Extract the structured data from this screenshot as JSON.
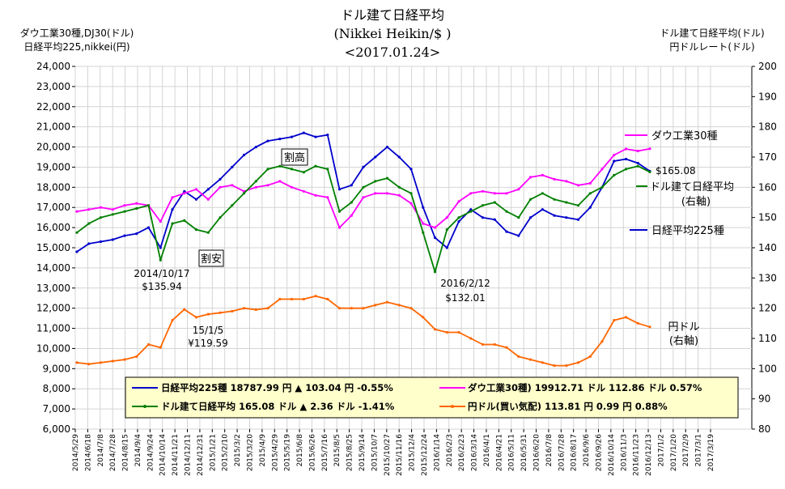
{
  "chart_data": {
    "type": "line",
    "title": "ドル建て日経平均",
    "subtitle": "(Nikkei Heikin/$ )",
    "date": "<2017.01.24>",
    "left_axis_label": [
      "ダウ工業30種,DJ30(ドル)",
      "日経平均225,nikkei(円)"
    ],
    "right_axis_label": [
      "ドル建て日経平均(ドル)",
      "円ドルレート(ドル)"
    ],
    "ylim_left": [
      6000,
      24000
    ],
    "ylim_right": [
      80,
      200
    ],
    "y_ticks_left": [
      "6,000",
      "7,000",
      "8,000",
      "9,000",
      "10,000",
      "11,000",
      "12,000",
      "13,000",
      "14,000",
      "15,000",
      "16,000",
      "17,000",
      "18,000",
      "19,000",
      "20,000",
      "21,000",
      "22,000",
      "23,000",
      "24,000"
    ],
    "y_ticks_right": [
      "80",
      "90",
      "100",
      "110",
      "120",
      "130",
      "140",
      "150",
      "160",
      "170",
      "180",
      "190",
      "200"
    ],
    "x_ticks": [
      "2014/5/29",
      "2014/6/18",
      "2014/7/8",
      "2014/7/28",
      "2014/8/15",
      "2014/9/4",
      "2014/9/24",
      "2014/10/14",
      "2014/11/21",
      "2014/12/11",
      "2014/12/31",
      "2015/1/21",
      "2015/2/10",
      "2015/3/2",
      "2015/3/20",
      "2015/4/9",
      "2015/4/29",
      "2015/5/19",
      "2015/6/8",
      "2015/6/26",
      "2015/7/16",
      "2015/8/5",
      "2015/8/25",
      "2015/9/14",
      "2015/10/7",
      "2015/10/27",
      "2015/11/16",
      "2015/12/4",
      "2015/12/24",
      "2016/1/14",
      "2016/2/3",
      "2016/2/23",
      "2016/3/14",
      "2016/4/1",
      "2016/4/21",
      "2016/5/11",
      "2016/5/31",
      "2016/6/20",
      "2016/7/8",
      "2016/7/28",
      "2016/8/17",
      "2016/9/6",
      "2016/9/26",
      "2016/10/14",
      "2016/11/3",
      "2016/11/23",
      "2016/12/13",
      "2017/1/2",
      "2017/1/20",
      "2017/2/9",
      "2017/3/1",
      "2017/3/19"
    ],
    "grid": true,
    "series": [
      {
        "name": "日経平均225種",
        "axis": "left",
        "color": "#0000cc",
        "x": [
          0,
          1,
          2,
          3,
          4,
          5,
          6,
          7,
          8,
          9,
          10,
          11,
          12,
          13,
          14,
          15,
          16,
          17,
          18,
          19,
          20,
          21,
          22,
          23,
          24,
          25,
          26,
          27,
          28,
          29,
          30,
          31,
          32,
          33,
          34,
          35,
          36,
          37,
          38,
          39,
          40,
          41,
          42,
          43,
          44,
          45,
          46,
          47,
          48
        ],
        "values": [
          14800,
          15200,
          15300,
          15400,
          15600,
          15700,
          16000,
          15000,
          16900,
          17800,
          17400,
          17900,
          18400,
          19000,
          19600,
          20000,
          20300,
          20400,
          20500,
          20700,
          20500,
          20600,
          17900,
          18100,
          19000,
          19500,
          20000,
          19500,
          18900,
          17000,
          15500,
          15000,
          16300,
          16900,
          16500,
          16400,
          15800,
          15600,
          16500,
          16900,
          16600,
          16500,
          16400,
          17000,
          18000,
          19300,
          19400,
          19200,
          18800
        ]
      },
      {
        "name": "ダウ工業30種",
        "axis": "left",
        "color": "#ff00ff",
        "x": [
          0,
          1,
          2,
          3,
          4,
          5,
          6,
          7,
          8,
          9,
          10,
          11,
          12,
          13,
          14,
          15,
          16,
          17,
          18,
          19,
          20,
          21,
          22,
          23,
          24,
          25,
          26,
          27,
          28,
          29,
          30,
          31,
          32,
          33,
          34,
          35,
          36,
          37,
          38,
          39,
          40,
          41,
          42,
          43,
          44,
          45,
          46,
          47,
          48
        ],
        "values": [
          16800,
          16900,
          17000,
          16900,
          17100,
          17200,
          17100,
          16300,
          17500,
          17700,
          17900,
          17400,
          18000,
          18100,
          17800,
          18000,
          18100,
          18300,
          18000,
          17800,
          17600,
          17500,
          16000,
          16600,
          17500,
          17700,
          17700,
          17600,
          17200,
          16200,
          16000,
          16500,
          17300,
          17700,
          17800,
          17700,
          17700,
          17900,
          18500,
          18600,
          18400,
          18300,
          18100,
          18200,
          18900,
          19600,
          19900,
          19800,
          19913
        ]
      },
      {
        "name": "ドル建て日経平均",
        "axis": "right",
        "color": "#008000",
        "x": [
          0,
          1,
          2,
          3,
          4,
          5,
          6,
          7,
          8,
          9,
          10,
          11,
          12,
          13,
          14,
          15,
          16,
          17,
          18,
          19,
          20,
          21,
          22,
          23,
          24,
          25,
          26,
          27,
          28,
          29,
          30,
          31,
          32,
          33,
          34,
          35,
          36,
          37,
          38,
          39,
          40,
          41,
          42,
          43,
          44,
          45,
          46,
          47,
          48
        ],
        "values": [
          145,
          148,
          150,
          151,
          152,
          153,
          154,
          135.94,
          148,
          149,
          146,
          145,
          150,
          154,
          158,
          162,
          166,
          167,
          166,
          165,
          167,
          166,
          152,
          155,
          160,
          162,
          163,
          160,
          158,
          145,
          132.01,
          146,
          150,
          152,
          154,
          155,
          152,
          150,
          156,
          158,
          156,
          155,
          154,
          158,
          160,
          164,
          166,
          167,
          165.08
        ]
      },
      {
        "name": "円ドル(買い気配)",
        "axis": "right",
        "color": "#ff6600",
        "x": [
          0,
          1,
          2,
          3,
          4,
          5,
          6,
          7,
          8,
          9,
          10,
          11,
          12,
          13,
          14,
          15,
          16,
          17,
          18,
          19,
          20,
          21,
          22,
          23,
          24,
          25,
          26,
          27,
          28,
          29,
          30,
          31,
          32,
          33,
          34,
          35,
          36,
          37,
          38,
          39,
          40,
          41,
          42,
          43,
          44,
          45,
          46,
          47,
          48
        ],
        "values": [
          102,
          101.5,
          102,
          102.5,
          103,
          104,
          108,
          107,
          116,
          119.59,
          117,
          118,
          118.5,
          119,
          120,
          119.5,
          120,
          123,
          123,
          123,
          124,
          123,
          120,
          120,
          120,
          121,
          122,
          121,
          120,
          117,
          113,
          112,
          112,
          110,
          108,
          108,
          107,
          104,
          103,
          102,
          101,
          101,
          102,
          104,
          109,
          116,
          117,
          115,
          113.81
        ]
      }
    ],
    "annotations": {
      "low_2014": [
        "2014/10/17",
        "$135.94"
      ],
      "low_2016": [
        "2016/2/12",
        "$132.01"
      ],
      "fx_2015": [
        "15/1/5",
        "¥119.59"
      ],
      "last_value": "$165.08",
      "cheap": "割安",
      "expensive": "割高"
    },
    "labels": {
      "dow": "ダウ工業30種",
      "usd_nikkei": [
        "ドル建て日経平均",
        "(右軸)"
      ],
      "nikkei": "日経平均225種",
      "yen": [
        "円ドル",
        "(右軸)"
      ]
    },
    "legend": {
      "position": "bottom-center",
      "entries": [
        "日経平均225種 18787.99 円 ▲ 103.04 円 -0.55%",
        "ダウ工業30種) 19912.71 ドル 112.86 ドル 0.57%",
        "ドル建て日経平均 165.08 ドル ▲ 2.36 ドル -1.41%",
        "円ドル(買い気配) 113.81 円 0.99 円 0.88%"
      ]
    }
  }
}
